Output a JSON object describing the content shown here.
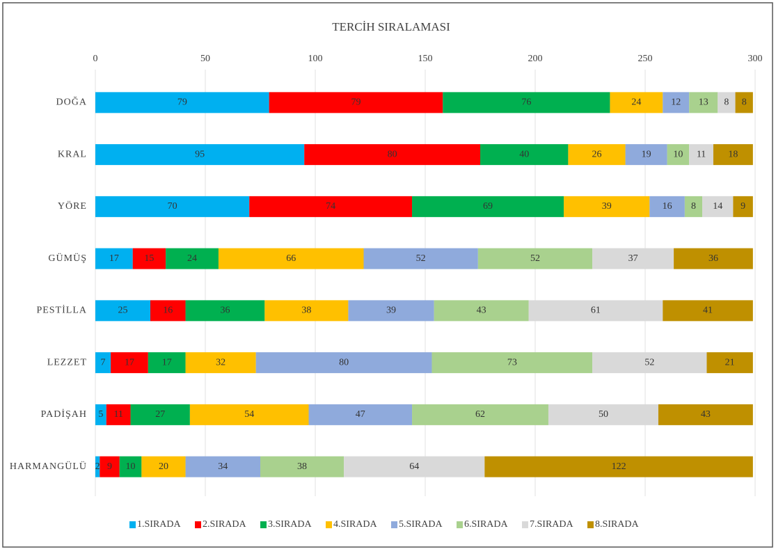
{
  "chart_data": {
    "type": "stacked_bar_horizontal",
    "title": "TERCİH SIRALAMASI",
    "categories": [
      "DOĞA",
      "KRAL",
      "YÖRE",
      "GÜMÜŞ",
      "PESTİLLA",
      "LEZZET",
      "PADİŞAH",
      "HARMANGÜLÜ"
    ],
    "series": [
      {
        "name": "1.SIRADA",
        "color": "#00b0f0",
        "values": [
          79,
          95,
          70,
          17,
          25,
          7,
          5,
          2
        ]
      },
      {
        "name": "2.SIRADA",
        "color": "#ff0000",
        "values": [
          79,
          80,
          74,
          15,
          16,
          17,
          11,
          9
        ]
      },
      {
        "name": "3.SIRADA",
        "color": "#00b050",
        "values": [
          76,
          40,
          69,
          24,
          36,
          17,
          27,
          10
        ]
      },
      {
        "name": "4.SIRADA",
        "color": "#ffc000",
        "values": [
          24,
          26,
          39,
          66,
          38,
          32,
          54,
          20
        ]
      },
      {
        "name": "5.SIRADA",
        "color": "#8faadc",
        "values": [
          12,
          19,
          16,
          52,
          39,
          80,
          47,
          34
        ]
      },
      {
        "name": "6.SIRADA",
        "color": "#a9d18e",
        "values": [
          13,
          10,
          8,
          52,
          43,
          73,
          62,
          38
        ]
      },
      {
        "name": "7.SIRADA",
        "color": "#d9d9d9",
        "values": [
          8,
          11,
          14,
          37,
          61,
          52,
          50,
          64
        ]
      },
      {
        "name": "8.SIRADA",
        "color": "#bf9000",
        "values": [
          8,
          18,
          9,
          36,
          41,
          21,
          43,
          122
        ]
      }
    ],
    "xlim": [
      0,
      300
    ],
    "xticks": [
      0,
      50,
      100,
      150,
      200,
      250,
      300
    ],
    "grid": true,
    "legend": "bottom"
  }
}
